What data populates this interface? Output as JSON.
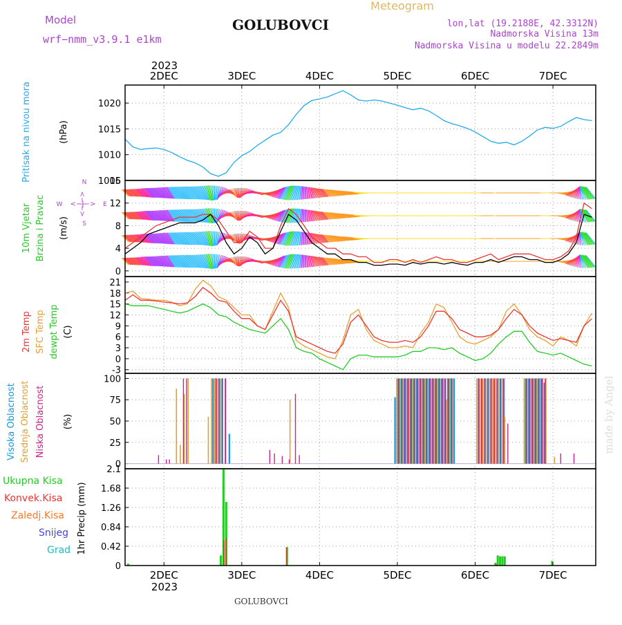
{
  "header": {
    "model_label": "Model",
    "model_name": "wrf−nmm_v3.9.1  e1km",
    "title": "GOLUBOVCI",
    "chart_kind": "Meteogram",
    "lonlat": "lon,lat (19.2188E, 42.3312N)",
    "altitude": "Nadmorska Visina 13m",
    "model_altitude": "Nadmorska Visina u modelu 22.2849m",
    "footer": "GOLUBOVCI",
    "watermark": "made by Angel",
    "colors": {
      "model": "#aa44cc",
      "meteogram": "#e0b860",
      "info": "#aa44cc"
    }
  },
  "chart_data": {
    "type": "meteogram",
    "x_range_days": [
      1.5,
      7.55
    ],
    "top_axis": {
      "year": "2023",
      "ticks": [
        {
          "x": 2,
          "label": "2DEC"
        },
        {
          "x": 3,
          "label": "3DEC"
        },
        {
          "x": 4,
          "label": "4DEC"
        },
        {
          "x": 5,
          "label": "5DEC"
        },
        {
          "x": 6,
          "label": "6DEC"
        },
        {
          "x": 7,
          "label": "7DEC"
        }
      ]
    },
    "bottom_axis": {
      "year": "2023",
      "ticks": [
        {
          "x": 2,
          "label": "2DEC"
        },
        {
          "x": 3,
          "label": "3DEC"
        },
        {
          "x": 4,
          "label": "4DEC"
        },
        {
          "x": 5,
          "label": "5DEC"
        },
        {
          "x": 6,
          "label": "6DEC"
        },
        {
          "x": 7,
          "label": "7DEC"
        }
      ]
    },
    "pressure": {
      "ylabel": "Pritisak na nivou mora",
      "unit": "(hPa)",
      "ylim": [
        1005,
        1023.5
      ],
      "yticks": [
        1005,
        1010,
        1015,
        1020
      ],
      "color": "#22aaee",
      "x": [
        1.5,
        1.6,
        1.7,
        1.8,
        1.9,
        2.0,
        2.1,
        2.2,
        2.3,
        2.4,
        2.5,
        2.6,
        2.7,
        2.8,
        2.9,
        3.0,
        3.1,
        3.2,
        3.3,
        3.4,
        3.5,
        3.6,
        3.7,
        3.8,
        3.9,
        4.0,
        4.1,
        4.2,
        4.3,
        4.4,
        4.5,
        4.6,
        4.7,
        4.8,
        4.9,
        5.0,
        5.1,
        5.2,
        5.3,
        5.4,
        5.5,
        5.6,
        5.7,
        5.8,
        5.9,
        6.0,
        6.1,
        6.2,
        6.3,
        6.4,
        6.5,
        6.6,
        6.7,
        6.8,
        6.9,
        7.0,
        7.1,
        7.2,
        7.3,
        7.4,
        7.5
      ],
      "values": [
        1013,
        1011.5,
        1011,
        1011.2,
        1011.3,
        1011,
        1010.4,
        1009.6,
        1008.9,
        1008.4,
        1007.6,
        1006.3,
        1005.8,
        1006.5,
        1008.5,
        1009.8,
        1010.6,
        1011.8,
        1012.8,
        1013.8,
        1014.3,
        1015.8,
        1017.8,
        1019.5,
        1020.5,
        1020.8,
        1021.2,
        1021.8,
        1022.4,
        1021.6,
        1020.6,
        1020.4,
        1020.6,
        1020.4,
        1020,
        1019.6,
        1019.1,
        1018.7,
        1019,
        1018.5,
        1017.6,
        1016.6,
        1016,
        1015.6,
        1015.1,
        1014.4,
        1013.5,
        1012.6,
        1012.2,
        1012.4,
        1011.9,
        1012.6,
        1013.6,
        1014.8,
        1015.3,
        1015.1,
        1015.5,
        1016.4,
        1017.2,
        1016.8,
        1016.6
      ]
    },
    "wind": {
      "ylabel1": "10m Vjetar",
      "ylabel2": "Brzina i Pravac",
      "unit": "(m/s)",
      "ylim": [
        -1,
        16
      ],
      "yticks": [
        0,
        4,
        8,
        12,
        16
      ],
      "compass": {
        "n": "N",
        "s": "S",
        "e": "E",
        "w": "W",
        "arrows": "<−|−>"
      },
      "x": [
        1.5,
        1.6,
        1.7,
        1.8,
        1.9,
        2.0,
        2.1,
        2.2,
        2.3,
        2.4,
        2.5,
        2.6,
        2.7,
        2.8,
        2.9,
        3.0,
        3.1,
        3.2,
        3.3,
        3.4,
        3.5,
        3.6,
        3.7,
        3.8,
        3.9,
        4.0,
        4.1,
        4.2,
        4.3,
        4.4,
        4.5,
        4.6,
        4.7,
        4.8,
        4.9,
        5.0,
        5.1,
        5.2,
        5.3,
        5.4,
        5.5,
        5.6,
        5.7,
        5.8,
        5.9,
        6.0,
        6.1,
        6.2,
        6.3,
        6.4,
        6.5,
        6.6,
        6.7,
        6.8,
        6.9,
        7.0,
        7.1,
        7.2,
        7.3,
        7.4,
        7.5
      ],
      "speed": [
        3,
        4,
        5,
        6.5,
        7,
        7.5,
        8,
        8.5,
        8.5,
        8.5,
        9,
        10,
        8,
        5,
        3,
        4,
        6,
        5,
        3,
        4,
        7,
        10,
        9,
        7,
        5,
        4,
        3,
        3,
        2,
        2,
        1.5,
        1.5,
        1,
        1,
        1.2,
        1.2,
        1,
        1.5,
        1.2,
        1.5,
        1.5,
        1.2,
        1.5,
        1.2,
        1,
        1.5,
        1.5,
        2,
        1.5,
        2,
        2.5,
        2.5,
        2,
        2,
        1.5,
        1.5,
        2,
        3,
        5,
        10,
        9.5
      ],
      "gust": [
        4,
        5,
        6,
        7,
        8,
        8.5,
        9,
        9.5,
        9.5,
        9.5,
        10,
        10,
        9,
        7,
        5,
        5,
        7,
        6,
        4,
        4,
        8,
        11,
        10,
        8,
        6,
        5,
        4,
        4,
        3,
        3,
        2.5,
        2.5,
        1.5,
        1.5,
        2,
        2,
        1.5,
        2,
        1.5,
        2,
        2.5,
        2,
        2,
        1.5,
        1.5,
        2,
        2.5,
        3,
        2,
        2.5,
        3,
        3,
        3,
        2.5,
        2,
        2,
        2.5,
        3.5,
        6,
        12,
        11
      ],
      "direction_deg": [
        135,
        135,
        135,
        140,
        140,
        145,
        150,
        150,
        155,
        155,
        160,
        170,
        190,
        250,
        330,
        20,
        80,
        110,
        90,
        60,
        30,
        20,
        10,
        0,
        350,
        330,
        320,
        310,
        300,
        290,
        280,
        270,
        270,
        270,
        270,
        270,
        270,
        270,
        270,
        270,
        270,
        270,
        270,
        270,
        270,
        270,
        270,
        270,
        270,
        270,
        270,
        270,
        270,
        270,
        270,
        270,
        270,
        250,
        200,
        150,
        140
      ],
      "colors": {
        "speed": "#000000",
        "gust": "#ee3333"
      }
    },
    "temperature": {
      "labels": [
        "2m Temp",
        "SFC Temp",
        "dewpt Temp"
      ],
      "unit": "(C)",
      "ylim": [
        -4,
        22.5
      ],
      "yticks": [
        -3,
        0,
        3,
        6,
        9,
        12,
        15,
        18,
        21
      ],
      "colors": {
        "t2m": "#ee3333",
        "sfc": "#e8a030",
        "dew": "#22cc22"
      },
      "x": [
        1.5,
        1.6,
        1.7,
        1.8,
        1.9,
        2.0,
        2.1,
        2.2,
        2.3,
        2.4,
        2.5,
        2.6,
        2.7,
        2.8,
        2.9,
        3.0,
        3.1,
        3.2,
        3.3,
        3.4,
        3.5,
        3.6,
        3.7,
        3.8,
        3.9,
        4.0,
        4.1,
        4.2,
        4.3,
        4.4,
        4.5,
        4.6,
        4.7,
        4.8,
        4.9,
        5.0,
        5.1,
        5.2,
        5.3,
        5.4,
        5.5,
        5.6,
        5.7,
        5.8,
        5.9,
        6.0,
        6.1,
        6.2,
        6.3,
        6.4,
        6.5,
        6.6,
        6.7,
        6.8,
        6.9,
        7.0,
        7.1,
        7.2,
        7.3,
        7.4,
        7.5
      ],
      "t2m": [
        16,
        17.5,
        16,
        16,
        15.8,
        15.5,
        15.3,
        15,
        15.3,
        17,
        19.5,
        18,
        16,
        15.5,
        13,
        11,
        11,
        9,
        8,
        12,
        16,
        13,
        6,
        5,
        4,
        3,
        2,
        1.5,
        4,
        10,
        12,
        9,
        6,
        5,
        4.5,
        4.5,
        5,
        4.5,
        6,
        9,
        13,
        13,
        11,
        8,
        7,
        6,
        6,
        6.5,
        8,
        11,
        13.5,
        12,
        9,
        7,
        6,
        5,
        5.5,
        5,
        4.5,
        9,
        11
      ],
      "sfc": [
        18,
        18.5,
        16.5,
        16.3,
        16,
        16,
        15.5,
        14.5,
        15,
        19,
        21.5,
        20,
        17,
        16,
        14,
        12,
        12,
        9,
        8,
        13,
        18,
        14,
        5,
        3.5,
        2.5,
        1.5,
        0.5,
        0,
        5,
        12,
        13.5,
        8,
        5,
        4,
        3,
        3,
        3.5,
        3,
        7,
        10,
        15,
        14,
        10,
        6,
        4.5,
        4,
        5,
        6,
        8,
        13,
        15,
        12,
        8,
        6,
        5,
        3.5,
        6,
        5,
        3.5,
        9,
        12.5
      ],
      "dew": [
        15,
        14.5,
        14.5,
        14.5,
        14,
        13.5,
        13,
        12.5,
        13,
        14,
        15,
        14,
        12,
        11.5,
        10,
        9,
        8,
        7.5,
        7,
        9,
        11,
        8,
        3,
        2,
        1.5,
        0,
        -1,
        -2,
        -3,
        0,
        1,
        1,
        0.5,
        0.5,
        0.5,
        0.5,
        1,
        2,
        2,
        3,
        3,
        2.5,
        3,
        1.5,
        0.5,
        -0.5,
        0,
        1.5,
        4,
        6,
        7.5,
        7.5,
        4.5,
        2,
        1.5,
        1,
        1.5,
        0.5,
        -0.5,
        -1.5,
        -2
      ]
    },
    "cloud": {
      "labels": [
        "Visoka Oblacnost",
        "Srednja Oblacnost",
        "Niska Oblacnost"
      ],
      "unit": "(%)",
      "ylim": [
        -6,
        106
      ],
      "yticks": [
        0,
        25,
        50,
        75,
        100
      ],
      "colors": {
        "high": "#1199dd",
        "mid": "#e0a030",
        "low": "#cc2288"
      },
      "high": [
        [
          2.63,
          100
        ],
        [
          2.67,
          100
        ],
        [
          2.71,
          100
        ],
        [
          2.75,
          100
        ],
        [
          2.79,
          100
        ],
        [
          2.84,
          35
        ],
        [
          4.97,
          78
        ],
        [
          5.01,
          100
        ],
        [
          5.05,
          100
        ],
        [
          5.09,
          100
        ],
        [
          5.13,
          100
        ],
        [
          5.17,
          100
        ],
        [
          5.21,
          100
        ],
        [
          5.25,
          100
        ],
        [
          5.29,
          100
        ],
        [
          5.33,
          100
        ],
        [
          5.37,
          100
        ],
        [
          5.41,
          100
        ],
        [
          5.45,
          100
        ],
        [
          5.49,
          100
        ],
        [
          5.53,
          100
        ],
        [
          5.57,
          100
        ],
        [
          5.61,
          100
        ],
        [
          5.65,
          100
        ],
        [
          5.69,
          100
        ],
        [
          5.73,
          100
        ],
        [
          6.05,
          100
        ],
        [
          6.09,
          100
        ],
        [
          6.13,
          100
        ],
        [
          6.17,
          100
        ],
        [
          6.21,
          100
        ],
        [
          6.25,
          100
        ],
        [
          6.29,
          100
        ],
        [
          6.33,
          100
        ],
        [
          6.37,
          100
        ],
        [
          6.65,
          100
        ],
        [
          6.69,
          100
        ],
        [
          6.73,
          100
        ],
        [
          6.77,
          100
        ],
        [
          6.81,
          100
        ],
        [
          6.85,
          100
        ],
        [
          6.89,
          95
        ]
      ],
      "mid": [
        [
          2.16,
          88
        ],
        [
          2.21,
          22
        ],
        [
          2.26,
          82
        ],
        [
          2.31,
          100
        ],
        [
          2.57,
          55
        ],
        [
          2.61,
          100
        ],
        [
          2.65,
          100
        ],
        [
          2.69,
          100
        ],
        [
          2.73,
          100
        ],
        [
          3.62,
          75
        ],
        [
          4.99,
          100
        ],
        [
          5.03,
          100
        ],
        [
          5.07,
          100
        ],
        [
          5.11,
          100
        ],
        [
          5.15,
          100
        ],
        [
          5.19,
          100
        ],
        [
          5.23,
          100
        ],
        [
          5.27,
          100
        ],
        [
          5.31,
          100
        ],
        [
          5.35,
          100
        ],
        [
          5.39,
          100
        ],
        [
          5.43,
          100
        ],
        [
          5.47,
          100
        ],
        [
          5.51,
          100
        ],
        [
          5.55,
          100
        ],
        [
          5.59,
          100
        ],
        [
          5.63,
          75
        ],
        [
          5.67,
          100
        ],
        [
          5.71,
          100
        ],
        [
          6.02,
          100
        ],
        [
          6.06,
          100
        ],
        [
          6.1,
          100
        ],
        [
          6.14,
          100
        ],
        [
          6.18,
          100
        ],
        [
          6.22,
          100
        ],
        [
          6.26,
          100
        ],
        [
          6.3,
          100
        ],
        [
          6.34,
          100
        ],
        [
          6.38,
          55
        ],
        [
          6.63,
          100
        ],
        [
          6.67,
          100
        ],
        [
          6.71,
          100
        ],
        [
          6.75,
          100
        ],
        [
          6.79,
          100
        ],
        [
          6.83,
          100
        ],
        [
          6.87,
          100
        ],
        [
          6.91,
          100
        ],
        [
          7.02,
          8
        ]
      ],
      "low": [
        [
          1.93,
          10
        ],
        [
          2.03,
          5
        ],
        [
          2.07,
          5
        ],
        [
          2.25,
          100
        ],
        [
          2.29,
          100
        ],
        [
          2.67,
          100
        ],
        [
          2.71,
          100
        ],
        [
          2.75,
          100
        ],
        [
          2.79,
          100
        ],
        [
          3.36,
          16
        ],
        [
          3.42,
          12
        ],
        [
          3.52,
          9
        ],
        [
          3.61,
          5
        ],
        [
          3.69,
          82
        ],
        [
          3.74,
          10
        ],
        [
          5.02,
          100
        ],
        [
          5.06,
          100
        ],
        [
          5.1,
          100
        ],
        [
          5.14,
          100
        ],
        [
          5.18,
          100
        ],
        [
          5.22,
          100
        ],
        [
          5.26,
          100
        ],
        [
          5.3,
          100
        ],
        [
          5.34,
          100
        ],
        [
          5.38,
          100
        ],
        [
          5.42,
          100
        ],
        [
          5.46,
          100
        ],
        [
          5.5,
          100
        ],
        [
          5.54,
          100
        ],
        [
          5.58,
          100
        ],
        [
          5.62,
          100
        ],
        [
          5.66,
          100
        ],
        [
          5.7,
          100
        ],
        [
          6.04,
          100
        ],
        [
          6.08,
          100
        ],
        [
          6.12,
          100
        ],
        [
          6.16,
          100
        ],
        [
          6.2,
          100
        ],
        [
          6.24,
          100
        ],
        [
          6.28,
          100
        ],
        [
          6.32,
          100
        ],
        [
          6.36,
          100
        ],
        [
          6.42,
          47
        ],
        [
          6.66,
          100
        ],
        [
          6.7,
          100
        ],
        [
          6.74,
          100
        ],
        [
          6.78,
          100
        ],
        [
          6.82,
          100
        ],
        [
          6.86,
          100
        ],
        [
          6.9,
          100
        ],
        [
          7.1,
          12
        ],
        [
          7.27,
          12
        ]
      ]
    },
    "precip": {
      "labels": [
        "Ukupna Kisa",
        "Konvek.Kisa",
        "Zaledj.Kisa",
        "Snijeg",
        "Grad"
      ],
      "unit": "1hr Precip (mm)",
      "ylim": [
        0,
        2.1
      ],
      "yticks": [
        0,
        0.42,
        0.84,
        1.26,
        1.68,
        2.1
      ],
      "ytick_labels": [
        "0",
        "0.42",
        "0.84",
        "1.26",
        "1.68",
        "2.1"
      ],
      "colors": {
        "total": "#22cc22",
        "conv": "#ee3333",
        "frz": "#ff7722",
        "snow": "#4444dd",
        "grad": "#22bbbb"
      },
      "total": [
        [
          1.54,
          0.04
        ],
        [
          2.73,
          0.22
        ],
        [
          2.765,
          2.1
        ],
        [
          2.8,
          1.38
        ],
        [
          3.58,
          0.4
        ],
        [
          6.26,
          0.06
        ],
        [
          6.29,
          0.22
        ],
        [
          6.32,
          0.2
        ],
        [
          6.35,
          0.2
        ],
        [
          6.38,
          0.2
        ],
        [
          6.99,
          0.1
        ]
      ],
      "conv": [
        [
          2.77,
          0.55
        ],
        [
          2.8,
          0.6
        ],
        [
          3.58,
          0.4
        ],
        [
          6.27,
          0.03
        ]
      ]
    }
  }
}
